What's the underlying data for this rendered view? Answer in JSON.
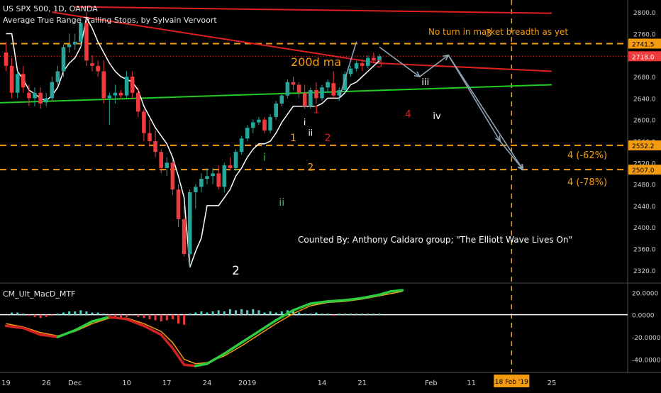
{
  "header": {
    "title": "US SPX 500, 1D, OANDA",
    "indicator": "Average True Range Trailing Stops, by Sylvain Vervoort",
    "oscillator_label": "CM_Ult_MacD_MTF"
  },
  "colors": {
    "background": "#000000",
    "up_candle": "#26a69a",
    "down_candle": "#ef3b3b",
    "trailing_stop": "#ffffff",
    "resistance_line": "#e02020",
    "support_line": "#22cc22",
    "levels": "#f39c12",
    "projection": "#8fa3b5",
    "macd_up": "#2ecc40",
    "macd_down": "#d32020",
    "signal": "#f39c12"
  },
  "annotations": {
    "breadth_note": "No turn in market breadth as yet",
    "ma_label": "200d ma",
    "counted_by": "Counted By: Anthony Caldaro group; \"The Elliott Wave Lives On\"",
    "target_62": "4 (-62%)",
    "target_78": "4 (-78%)",
    "wave_labels": [
      {
        "text": "2",
        "color": "#ffffff"
      },
      {
        "text": "i",
        "color": "#2ecc40"
      },
      {
        "text": "ii",
        "color": "#2ecc40"
      },
      {
        "text": "1",
        "color": "#f39c12"
      },
      {
        "text": "2",
        "color": "#f39c12"
      },
      {
        "text": "i",
        "color": "#ffffff"
      },
      {
        "text": "ii",
        "color": "#ffffff"
      },
      {
        "text": "1",
        "color": "#e02020"
      },
      {
        "text": "2",
        "color": "#e02020"
      },
      {
        "text": "3",
        "color": "#e02020"
      },
      {
        "text": "4",
        "color": "#e02020"
      },
      {
        "text": "iii",
        "color": "#ffffff"
      },
      {
        "text": "iv",
        "color": "#ffffff"
      },
      {
        "text": "3",
        "color": "#f39c12"
      }
    ]
  },
  "chart_data": [
    {
      "type": "candlestick",
      "ylim": [
        2300,
        2820
      ],
      "price_axis_ticks": [
        "2800.0",
        "2760.0",
        "2720.0",
        "2680.0",
        "2640.0",
        "2600.0",
        "2560.0",
        "2520.0",
        "2480.0",
        "2440.0",
        "2400.0",
        "2360.0",
        "2320.0"
      ],
      "price_badges": [
        {
          "label": "2741.5",
          "value": 2741.5,
          "color": "#f39c12"
        },
        {
          "label": "2718.0",
          "value": 2718.0,
          "color": "#ef3b3b"
        },
        {
          "label": "2552.2",
          "value": 2552.2,
          "color": "#f39c12"
        },
        {
          "label": "2507.0",
          "value": 2507.0,
          "color": "#f39c12"
        }
      ],
      "horizontal_levels": [
        2741.5,
        2552.2,
        2507.0
      ],
      "x_axis_labels": [
        "19",
        "26",
        "Dec",
        "10",
        "17",
        "24",
        "2019",
        "14",
        "21",
        "Feb",
        "11",
        "18",
        "25"
      ],
      "x_axis_label_days": [
        0,
        7,
        12,
        21,
        28,
        35,
        42,
        55,
        62,
        74,
        81,
        88,
        95
      ],
      "highlighted_date": "18 Feb '19",
      "highlighted_day": 88,
      "candles": [
        [
          0,
          2725,
          2745,
          2690,
          2700
        ],
        [
          1,
          2700,
          2715,
          2640,
          2650
        ],
        [
          2,
          2650,
          2690,
          2640,
          2685
        ],
        [
          3,
          2685,
          2700,
          2650,
          2660
        ],
        [
          4,
          2650,
          2665,
          2625,
          2640
        ],
        [
          5,
          2640,
          2660,
          2625,
          2650
        ],
        [
          6,
          2650,
          2660,
          2620,
          2630
        ],
        [
          7,
          2632,
          2650,
          2625,
          2640
        ],
        [
          8,
          2640,
          2680,
          2635,
          2670
        ],
        [
          9,
          2670,
          2700,
          2665,
          2690
        ],
        [
          10,
          2690,
          2740,
          2680,
          2735
        ],
        [
          11,
          2735,
          2760,
          2725,
          2740
        ],
        [
          12,
          2740,
          2760,
          2730,
          2745
        ],
        [
          13,
          2745,
          2790,
          2735,
          2780
        ],
        [
          14,
          2780,
          2800,
          2700,
          2710
        ],
        [
          15,
          2705,
          2720,
          2690,
          2700
        ],
        [
          16,
          2700,
          2710,
          2680,
          2690
        ],
        [
          17,
          2690,
          2710,
          2630,
          2640
        ],
        [
          18,
          2640,
          2650,
          2590,
          2645
        ],
        [
          19,
          2645,
          2665,
          2630,
          2650
        ],
        [
          20,
          2650,
          2655,
          2640,
          2645
        ],
        [
          21,
          2645,
          2690,
          2640,
          2680
        ],
        [
          22,
          2680,
          2690,
          2640,
          2650
        ],
        [
          23,
          2650,
          2660,
          2605,
          2615
        ],
        [
          24,
          2615,
          2620,
          2560,
          2575
        ],
        [
          25,
          2575,
          2600,
          2550,
          2560
        ],
        [
          26,
          2560,
          2580,
          2530,
          2540
        ],
        [
          27,
          2540,
          2545,
          2500,
          2510
        ],
        [
          28,
          2510,
          2530,
          2495,
          2520
        ],
        [
          29,
          2520,
          2525,
          2460,
          2470
        ],
        [
          30,
          2470,
          2480,
          2400,
          2415
        ],
        [
          31,
          2415,
          2440,
          2345,
          2350
        ],
        [
          32,
          2350,
          2470,
          2325,
          2465
        ],
        [
          33,
          2465,
          2480,
          2435,
          2475
        ],
        [
          34,
          2475,
          2500,
          2465,
          2490
        ],
        [
          35,
          2490,
          2510,
          2480,
          2495
        ],
        [
          36,
          2495,
          2510,
          2480,
          2500
        ],
        [
          37,
          2500,
          2515,
          2470,
          2475
        ],
        [
          38,
          2475,
          2520,
          2465,
          2515
        ],
        [
          39,
          2515,
          2530,
          2505,
          2510
        ],
        [
          40,
          2510,
          2545,
          2505,
          2540
        ],
        [
          41,
          2540,
          2570,
          2535,
          2565
        ],
        [
          42,
          2565,
          2590,
          2560,
          2585
        ],
        [
          43,
          2585,
          2600,
          2575,
          2595
        ],
        [
          44,
          2595,
          2605,
          2590,
          2600
        ],
        [
          45,
          2600,
          2605,
          2575,
          2580
        ],
        [
          46,
          2580,
          2610,
          2575,
          2605
        ],
        [
          47,
          2605,
          2635,
          2600,
          2630
        ],
        [
          48,
          2630,
          2650,
          2625,
          2645
        ],
        [
          49,
          2645,
          2675,
          2640,
          2670
        ],
        [
          50,
          2670,
          2680,
          2655,
          2665
        ],
        [
          51,
          2665,
          2670,
          2640,
          2650
        ],
        [
          52,
          2650,
          2665,
          2620,
          2625
        ],
        [
          53,
          2625,
          2660,
          2620,
          2655
        ],
        [
          54,
          2655,
          2670,
          2630,
          2640
        ],
        [
          55,
          2640,
          2665,
          2635,
          2660
        ],
        [
          56,
          2660,
          2675,
          2650,
          2670
        ],
        [
          57,
          2668,
          2690,
          2640,
          2645
        ],
        [
          58,
          2645,
          2660,
          2635,
          2655
        ],
        [
          59,
          2655,
          2690,
          2650,
          2685
        ],
        [
          60,
          2685,
          2700,
          2680,
          2695
        ],
        [
          61,
          2695,
          2710,
          2690,
          2705
        ],
        [
          62,
          2705,
          2712,
          2690,
          2700
        ],
        [
          63,
          2700,
          2720,
          2695,
          2715
        ],
        [
          64,
          2715,
          2725,
          2705,
          2710
        ],
        [
          65,
          2710,
          2722,
          2705,
          2718
        ]
      ],
      "trailing_stop": [
        [
          0,
          2760
        ],
        [
          1,
          2760
        ],
        [
          2,
          2690
        ],
        [
          3,
          2675
        ],
        [
          4,
          2655
        ],
        [
          5,
          2648
        ],
        [
          6,
          2640
        ],
        [
          7,
          2635
        ],
        [
          8,
          2645
        ],
        [
          9,
          2660
        ],
        [
          10,
          2690
        ],
        [
          11,
          2705
        ],
        [
          12,
          2715
        ],
        [
          13,
          2735
        ],
        [
          14,
          2790
        ],
        [
          15,
          2770
        ],
        [
          16,
          2745
        ],
        [
          17,
          2725
        ],
        [
          18,
          2705
        ],
        [
          19,
          2690
        ],
        [
          20,
          2680
        ],
        [
          21,
          2675
        ],
        [
          22,
          2670
        ],
        [
          23,
          2655
        ],
        [
          24,
          2625
        ],
        [
          25,
          2605
        ],
        [
          26,
          2585
        ],
        [
          27,
          2570
        ],
        [
          28,
          2555
        ],
        [
          29,
          2530
        ],
        [
          30,
          2495
        ],
        [
          31,
          2455
        ],
        [
          32,
          2325
        ],
        [
          33,
          2355
        ],
        [
          34,
          2380
        ],
        [
          35,
          2440
        ],
        [
          36,
          2440
        ],
        [
          37,
          2440
        ],
        [
          38,
          2455
        ],
        [
          39,
          2470
        ],
        [
          40,
          2495
        ],
        [
          41,
          2510
        ],
        [
          42,
          2530
        ],
        [
          43,
          2545
        ],
        [
          44,
          2555
        ],
        [
          45,
          2555
        ],
        [
          46,
          2560
        ],
        [
          47,
          2575
        ],
        [
          48,
          2595
        ],
        [
          49,
          2610
        ],
        [
          50,
          2625
        ],
        [
          51,
          2625
        ],
        [
          52,
          2625
        ],
        [
          53,
          2625
        ],
        [
          54,
          2625
        ],
        [
          55,
          2630
        ],
        [
          56,
          2640
        ],
        [
          57,
          2640
        ],
        [
          58,
          2640
        ],
        [
          59,
          2650
        ],
        [
          60,
          2665
        ],
        [
          61,
          2670
        ],
        [
          62,
          2680
        ],
        [
          63,
          2690
        ],
        [
          64,
          2700
        ],
        [
          65,
          2710
        ]
      ],
      "resistance_line": [
        [
          8,
          2800
        ],
        [
          65,
          2705
        ]
      ],
      "top_line": [
        [
          12,
          2810
        ],
        [
          95,
          2798
        ]
      ],
      "support_line": [
        [
          -5,
          2630
        ],
        [
          95,
          2665
        ]
      ],
      "projection_path": [
        [
          65,
          2735
        ],
        [
          72,
          2680
        ],
        [
          77,
          2720
        ],
        [
          86,
          2560
        ],
        [
          90,
          2507
        ]
      ],
      "projection_path_b": [
        [
          77,
          2720
        ],
        [
          90,
          2507
        ]
      ]
    },
    {
      "type": "line",
      "name": "CM_Ult_MacD_MTF",
      "ylim": [
        -48,
        24
      ],
      "axis_ticks": [
        "20.0000",
        "0.0000",
        "-20.0000",
        "-40.0000"
      ],
      "macd": [
        [
          0,
          -10
        ],
        [
          3,
          -12
        ],
        [
          6,
          -18
        ],
        [
          9,
          -20
        ],
        [
          12,
          -14
        ],
        [
          15,
          -6
        ],
        [
          18,
          -2
        ],
        [
          21,
          -4
        ],
        [
          24,
          -10
        ],
        [
          27,
          -18
        ],
        [
          29,
          -30
        ],
        [
          31,
          -45
        ],
        [
          33,
          -46
        ],
        [
          35,
          -44
        ],
        [
          38,
          -35
        ],
        [
          41,
          -25
        ],
        [
          44,
          -15
        ],
        [
          47,
          -5
        ],
        [
          50,
          4
        ],
        [
          53,
          10
        ],
        [
          56,
          12
        ],
        [
          59,
          13
        ],
        [
          62,
          15
        ],
        [
          65,
          18
        ],
        [
          67,
          21
        ],
        [
          69,
          22
        ]
      ],
      "signal": [
        [
          0,
          -8
        ],
        [
          3,
          -11
        ],
        [
          6,
          -16
        ],
        [
          9,
          -19
        ],
        [
          12,
          -15
        ],
        [
          15,
          -8
        ],
        [
          18,
          -3
        ],
        [
          21,
          -3
        ],
        [
          24,
          -8
        ],
        [
          27,
          -15
        ],
        [
          29,
          -25
        ],
        [
          31,
          -40
        ],
        [
          33,
          -44
        ],
        [
          35,
          -43
        ],
        [
          38,
          -37
        ],
        [
          41,
          -28
        ],
        [
          44,
          -18
        ],
        [
          47,
          -8
        ],
        [
          50,
          1
        ],
        [
          53,
          8
        ],
        [
          56,
          11
        ],
        [
          59,
          12
        ],
        [
          62,
          14
        ],
        [
          65,
          17
        ],
        [
          67,
          19
        ],
        [
          69,
          21
        ]
      ],
      "histogram": [
        [
          1,
          2
        ],
        [
          2,
          2
        ],
        [
          3,
          1
        ],
        [
          4,
          -1
        ],
        [
          5,
          -2
        ],
        [
          6,
          -3
        ],
        [
          7,
          -2
        ],
        [
          8,
          -1
        ],
        [
          9,
          1
        ],
        [
          10,
          2
        ],
        [
          11,
          3
        ],
        [
          12,
          3
        ],
        [
          13,
          4
        ],
        [
          14,
          3
        ],
        [
          15,
          2
        ],
        [
          16,
          2
        ],
        [
          17,
          1
        ],
        [
          18,
          -1
        ],
        [
          19,
          -2
        ],
        [
          20,
          -3
        ],
        [
          21,
          -2
        ],
        [
          22,
          -1
        ],
        [
          23,
          -2
        ],
        [
          24,
          -3
        ],
        [
          25,
          -4
        ],
        [
          26,
          -5
        ],
        [
          27,
          -6
        ],
        [
          28,
          -5
        ],
        [
          29,
          -4
        ],
        [
          30,
          -8
        ],
        [
          31,
          -9
        ],
        [
          32,
          1
        ],
        [
          33,
          2
        ],
        [
          34,
          3
        ],
        [
          35,
          2
        ],
        [
          36,
          3
        ],
        [
          37,
          4
        ],
        [
          38,
          3
        ],
        [
          39,
          5
        ],
        [
          40,
          4
        ],
        [
          41,
          5
        ],
        [
          42,
          4
        ],
        [
          43,
          5
        ],
        [
          44,
          4
        ],
        [
          45,
          2
        ],
        [
          46,
          3
        ],
        [
          47,
          2
        ],
        [
          48,
          3
        ],
        [
          49,
          4
        ],
        [
          50,
          3
        ],
        [
          51,
          2
        ],
        [
          52,
          1
        ],
        [
          53,
          1
        ],
        [
          54,
          2
        ],
        [
          55,
          1
        ],
        [
          56,
          1
        ],
        [
          57,
          -1
        ],
        [
          58,
          1
        ],
        [
          59,
          1
        ],
        [
          60,
          1
        ],
        [
          61,
          1
        ],
        [
          62,
          1
        ],
        [
          63,
          1
        ],
        [
          64,
          1
        ],
        [
          65,
          1
        ]
      ]
    }
  ]
}
